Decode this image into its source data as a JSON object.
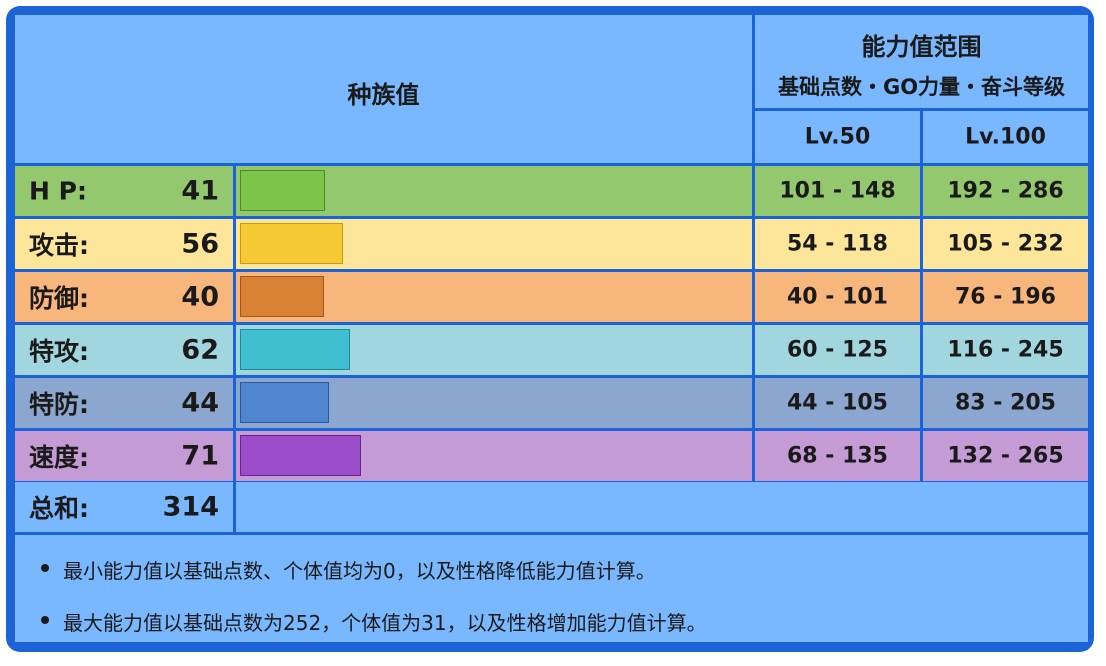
{
  "header": {
    "base_stats_title": "种族值",
    "range_title": "能力值范围",
    "range_subtitle": "基础点数・GO力量・奋斗等级",
    "lv50": "Lv.50",
    "lv100": "Lv.100"
  },
  "stats": [
    {
      "label": "H P:",
      "value": "41",
      "min50": "101",
      "max50": "148",
      "min100": "192",
      "max100": "286",
      "row_color": "#93c86f",
      "bar_color": "#7dc54a",
      "bar_border": "#4e8a2c"
    },
    {
      "label": "攻击:",
      "value": "56",
      "min50": "54",
      "max50": "118",
      "min100": "105",
      "max100": "232",
      "row_color": "#fde59a",
      "bar_color": "#f5c933",
      "bar_border": "#c99a10"
    },
    {
      "label": "防御:",
      "value": "40",
      "min50": "40",
      "max50": "101",
      "min100": "76",
      "max100": "196",
      "row_color": "#f7b67c",
      "bar_color": "#d98235",
      "bar_border": "#a15a1c"
    },
    {
      "label": "特攻:",
      "value": "62",
      "min50": "60",
      "max50": "125",
      "min100": "116",
      "max100": "245",
      "row_color": "#a2d6df",
      "bar_color": "#3fbfcf",
      "bar_border": "#1f8a97"
    },
    {
      "label": "特防:",
      "value": "44",
      "min50": "44",
      "max50": "105",
      "min100": "83",
      "max100": "205",
      "row_color": "#8ba6cf",
      "bar_color": "#4f86cf",
      "bar_border": "#2b5a9c"
    },
    {
      "label": "速度:",
      "value": "71",
      "min50": "68",
      "max50": "135",
      "min100": "132",
      "max100": "265",
      "row_color": "#c59bd6",
      "bar_color": "#9b4cc9",
      "bar_border": "#6a2492"
    }
  ],
  "total": {
    "label": "总和:",
    "value": "314"
  },
  "notes": [
    "最小能力值以基础点数、个体值均为0，以及性格降低能力值计算。",
    "最大能力值以基础点数为252，个体值为31，以及性格增加能力值计算。"
  ]
}
